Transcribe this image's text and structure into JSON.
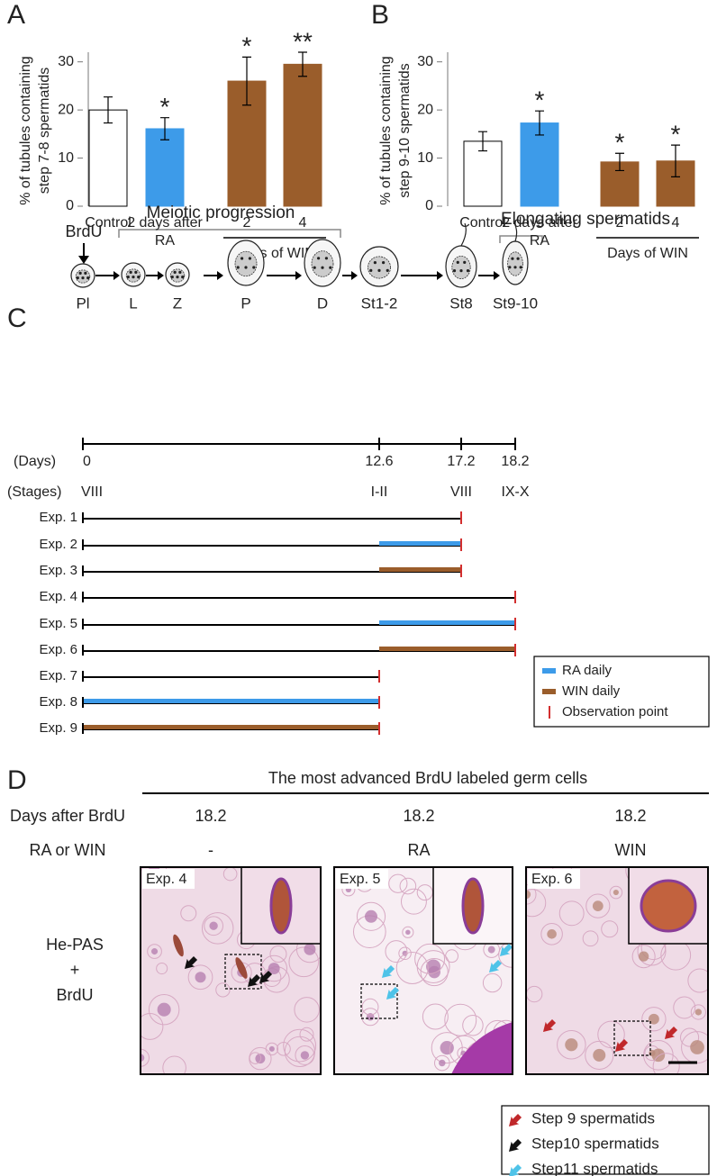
{
  "panels": {
    "a": "A",
    "b": "B",
    "c": "C",
    "d": "D"
  },
  "chart_data": [
    {
      "type": "bar",
      "ylabel": "% of tubules containing step 7-8 spermatids",
      "categories": [
        "Control",
        "2 days after RA",
        "2",
        "4"
      ],
      "group_label": "Days of WIN",
      "values": [
        20,
        16.1,
        26,
        29.5
      ],
      "errors": [
        2.7,
        2.3,
        5,
        2.5
      ],
      "significance": [
        null,
        "*",
        "*",
        "**"
      ],
      "colors": [
        "#ffffff",
        "#3d9be9",
        "#9a5d2b",
        "#9a5d2b"
      ],
      "ylim": [
        0,
        32
      ],
      "yticks": [
        0,
        10,
        20,
        30
      ]
    },
    {
      "type": "bar",
      "ylabel": "% of tubules containing step 9-10 spermatids",
      "categories": [
        "Control",
        "2 days after RA",
        "2",
        "4"
      ],
      "group_label": "Days of WIN",
      "values": [
        13.5,
        17.3,
        9.2,
        9.4
      ],
      "errors": [
        2,
        2.5,
        1.8,
        3.3
      ],
      "significance": [
        null,
        "*",
        "*",
        "*"
      ],
      "colors": [
        "#ffffff",
        "#3d9be9",
        "#9a5d2b",
        "#9a5d2b"
      ],
      "ylim": [
        0,
        32
      ],
      "yticks": [
        0,
        10,
        20,
        30
      ]
    }
  ],
  "timeline": {
    "marker": "BrdU",
    "brackets": [
      "Meiotic progression",
      "Elongating spermatids"
    ],
    "cells": [
      "Pl",
      "L",
      "Z",
      "P",
      "D",
      "St1-2",
      "St8",
      "St9-10"
    ],
    "days_label": "(Days)",
    "days": [
      0,
      12.6,
      17.2,
      18.2
    ],
    "stages_label": "(Stages)",
    "stages": [
      "VIII",
      "I-II",
      "VIII",
      "IX-X"
    ],
    "experiments": [
      "Exp. 1",
      "Exp. 2",
      "Exp. 3",
      "Exp. 4",
      "Exp. 5",
      "Exp. 6",
      "Exp. 7",
      "Exp. 8",
      "Exp. 9"
    ],
    "legend": [
      "RA daily",
      "WIN daily",
      "Observation point"
    ]
  },
  "micrographs": {
    "header": "The most advanced BrdU labeled germ cells",
    "row_labels": [
      "Days after BrdU",
      "RA or WIN"
    ],
    "days": [
      18.2,
      18.2,
      18.2
    ],
    "treatments": [
      "-",
      "RA",
      "WIN"
    ],
    "stain": [
      "He-PAS",
      "+",
      "BrdU"
    ],
    "images": [
      "Exp. 4",
      "Exp. 5",
      "Exp. 6"
    ],
    "legend": [
      "Step 9 spermatids",
      "Step10 spermatids",
      "Step11 spermatids"
    ]
  }
}
